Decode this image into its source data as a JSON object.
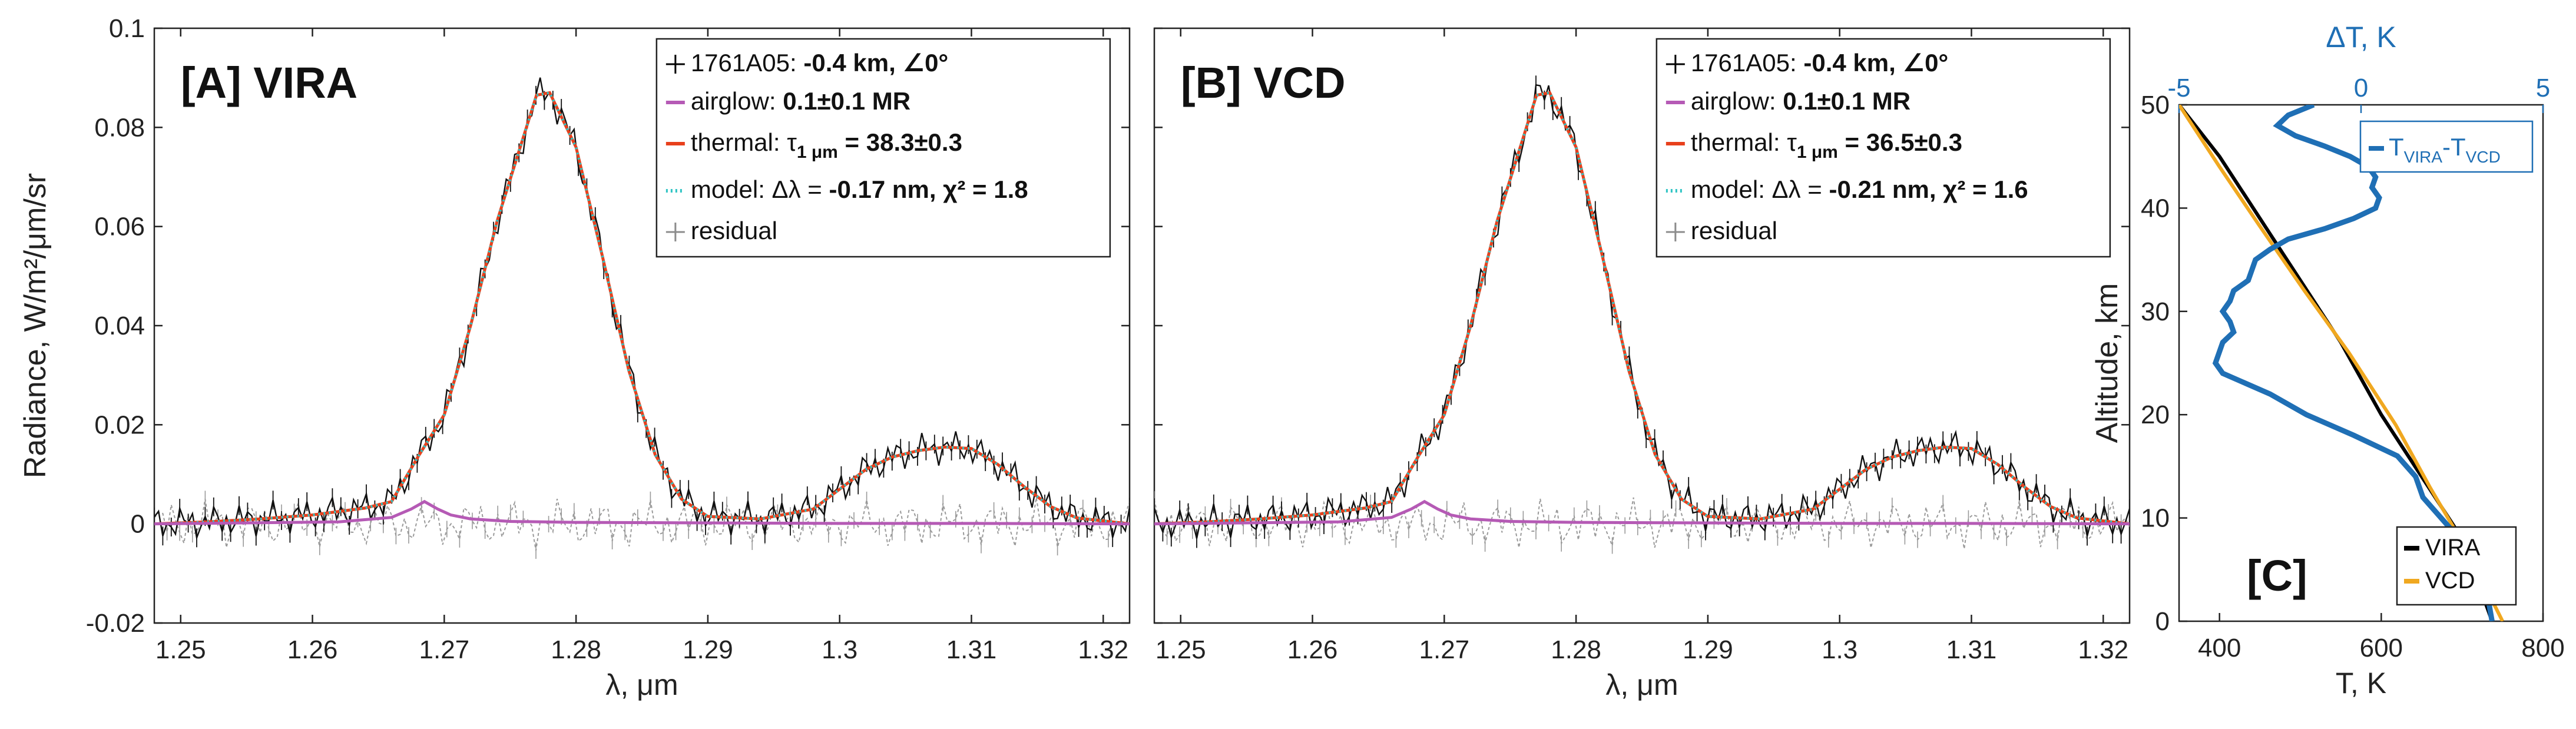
{
  "chart_data": [
    {
      "type": "line",
      "panel_label": "[A] VIRA",
      "xlabel": "λ, μm",
      "ylabel": "Radiance, W/m²/μm/sr",
      "xlim": [
        1.248,
        1.322
      ],
      "ylim": [
        -0.02,
        0.1
      ],
      "xticks": [
        1.25,
        1.26,
        1.27,
        1.28,
        1.29,
        1.3,
        1.31,
        1.32
      ],
      "xtick_labels": [
        "1.25",
        "1.26",
        "1.27",
        "1.28",
        "1.29",
        "1.3",
        "1.31",
        "1.32"
      ],
      "yticks": [
        -0.02,
        0,
        0.02,
        0.04,
        0.06,
        0.08,
        0.1
      ],
      "ytick_labels": [
        "-0.02",
        "0",
        "0.02",
        "0.04",
        "0.06",
        "0.08",
        "0.1"
      ],
      "legend": {
        "location": "top-right",
        "entries": [
          {
            "prefix": "1761A05: ",
            "value": "-0.4 km, ∠0°",
            "color": "#000000",
            "style": "errorbar"
          },
          {
            "prefix": "airglow: ",
            "value": "0.1±0.1 MR",
            "color": "#b55ab5",
            "style": "solid"
          },
          {
            "prefix": "thermal: τ",
            "sub": "1 μm",
            "value": " = 38.3±0.3",
            "color": "#e8401c",
            "style": "solid"
          },
          {
            "prefix": "model: Δλ = ",
            "value": "-0.17 nm, χ² = 1.8",
            "color": "#2ec4c4",
            "style": "dotted"
          },
          {
            "prefix": "residual",
            "value": "",
            "color": "#8c8c8c",
            "style": "errorbar"
          }
        ]
      },
      "series": [
        {
          "name": "thermal",
          "color": "#e8401c",
          "x": [
            1.248,
            1.252,
            1.256,
            1.26,
            1.264,
            1.266,
            1.268,
            1.27,
            1.272,
            1.274,
            1.276,
            1.277,
            1.278,
            1.28,
            1.282,
            1.284,
            1.286,
            1.288,
            1.29,
            1.294,
            1.298,
            1.3,
            1.302,
            1.304,
            1.306,
            1.308,
            1.31,
            1.312,
            1.314,
            1.316,
            1.318,
            1.322
          ],
          "y": [
            0,
            0.0004,
            0.001,
            0.0018,
            0.0032,
            0.0045,
            0.0135,
            0.022,
            0.04,
            0.061,
            0.078,
            0.0865,
            0.087,
            0.076,
            0.054,
            0.031,
            0.014,
            0.005,
            0.0015,
            0.001,
            0.003,
            0.007,
            0.011,
            0.0135,
            0.0148,
            0.0155,
            0.0152,
            0.012,
            0.0075,
            0.0035,
            0.0012,
            0
          ]
        },
        {
          "name": "airglow",
          "color": "#b55ab5",
          "x": [
            1.248,
            1.262,
            1.266,
            1.2675,
            1.2685,
            1.2695,
            1.2705,
            1.272,
            1.275,
            1.28,
            1.29,
            1.3,
            1.31,
            1.322
          ],
          "y": [
            0,
            0.0004,
            0.0013,
            0.003,
            0.0045,
            0.003,
            0.0018,
            0.001,
            0.0005,
            0.0003,
            0.0002,
            0.0001,
            0.0001,
            0
          ]
        }
      ]
    },
    {
      "type": "line",
      "panel_label": "[B] VCD",
      "xlabel": "λ, μm",
      "ylabel": "",
      "xlim": [
        1.248,
        1.322
      ],
      "ylim": [
        -0.02,
        0.1
      ],
      "xticks": [
        1.25,
        1.26,
        1.27,
        1.28,
        1.29,
        1.3,
        1.31,
        1.32
      ],
      "xtick_labels": [
        "1.25",
        "1.26",
        "1.27",
        "1.28",
        "1.29",
        "1.3",
        "1.31",
        "1.32"
      ],
      "legend": {
        "location": "top-right",
        "entries": [
          {
            "prefix": "1761A05: ",
            "value": "-0.4 km, ∠0°",
            "color": "#000000",
            "style": "errorbar"
          },
          {
            "prefix": "airglow: ",
            "value": "0.1±0.1 MR",
            "color": "#b55ab5",
            "style": "solid"
          },
          {
            "prefix": "thermal: τ",
            "sub": "1 μm",
            "value": " = 36.5±0.3",
            "color": "#e8401c",
            "style": "solid"
          },
          {
            "prefix": "model: Δλ = ",
            "value": "-0.21 nm, χ² = 1.6",
            "color": "#2ec4c4",
            "style": "dotted"
          },
          {
            "prefix": "residual",
            "value": "",
            "color": "#8c8c8c",
            "style": "errorbar"
          }
        ]
      },
      "series": [
        {
          "name": "thermal",
          "color": "#e8401c",
          "x": [
            1.248,
            1.252,
            1.256,
            1.26,
            1.264,
            1.266,
            1.268,
            1.27,
            1.272,
            1.274,
            1.276,
            1.277,
            1.278,
            1.28,
            1.282,
            1.284,
            1.286,
            1.288,
            1.29,
            1.294,
            1.298,
            1.3,
            1.302,
            1.304,
            1.306,
            1.308,
            1.31,
            1.312,
            1.314,
            1.316,
            1.318,
            1.322
          ],
          "y": [
            0,
            0.0004,
            0.001,
            0.0018,
            0.0032,
            0.0045,
            0.0135,
            0.022,
            0.04,
            0.061,
            0.078,
            0.0865,
            0.087,
            0.076,
            0.054,
            0.031,
            0.014,
            0.005,
            0.0015,
            0.001,
            0.003,
            0.007,
            0.011,
            0.0135,
            0.0148,
            0.0155,
            0.0152,
            0.012,
            0.0075,
            0.0035,
            0.0012,
            0
          ]
        },
        {
          "name": "airglow",
          "color": "#b55ab5",
          "x": [
            1.248,
            1.262,
            1.266,
            1.2675,
            1.2685,
            1.2695,
            1.2705,
            1.272,
            1.275,
            1.28,
            1.29,
            1.3,
            1.31,
            1.322
          ],
          "y": [
            0,
            0.0004,
            0.0013,
            0.003,
            0.0045,
            0.003,
            0.0018,
            0.001,
            0.0005,
            0.0003,
            0.0002,
            0.0001,
            0.0001,
            0
          ]
        }
      ]
    },
    {
      "type": "line",
      "panel_label": "[C]",
      "xlabel": "T, K",
      "ylabel": "Altitude, km",
      "top_xlabel": "ΔT, K",
      "xlim": [
        350,
        800
      ],
      "ylim": [
        0,
        50
      ],
      "top_xlim": [
        -5,
        5
      ],
      "xticks": [
        400,
        600,
        800
      ],
      "xtick_labels": [
        "400",
        "600",
        "800"
      ],
      "yticks": [
        0,
        10,
        20,
        30,
        40,
        50
      ],
      "ytick_labels": [
        "0",
        "10",
        "20",
        "30",
        "40",
        "50"
      ],
      "top_xticks": [
        -5,
        0,
        5
      ],
      "top_xtick_labels": [
        "-5",
        "0",
        "5"
      ],
      "top_legend": {
        "label": "T",
        "sub": "VIRA",
        "dash": "-T",
        "sub2": "VCD",
        "color": "#1f6fb5"
      },
      "legend": {
        "location": "bottom-right",
        "entries": [
          {
            "label": "VIRA",
            "color": "#000000"
          },
          {
            "label": "VCD",
            "color": "#f0a820"
          }
        ]
      },
      "series": [
        {
          "name": "VIRA",
          "axis": "bottom",
          "color": "#000000",
          "x": [
            737,
            700,
            650,
            600,
            550,
            500,
            450,
            400,
            350
          ],
          "y": [
            0,
            8,
            14,
            20,
            27,
            33,
            39,
            45,
            50
          ]
        },
        {
          "name": "VCD",
          "axis": "bottom",
          "color": "#f0a820",
          "x": [
            750,
            705,
            660,
            618,
            560,
            505,
            452,
            400,
            350
          ],
          "y": [
            0,
            7,
            13,
            19,
            26,
            32,
            38,
            44,
            50
          ]
        },
        {
          "name": "T_VIRA-T_VCD",
          "axis": "top",
          "color": "#1f6fb5",
          "x": [
            -1.3,
            -2.0,
            -2.3,
            -1.8,
            -1.0,
            -0.3,
            0.2,
            0.4,
            0.3,
            0.5,
            0.4,
            -0.2,
            -1.0,
            -2.0,
            -2.5,
            -2.9,
            -3.0,
            -3.1,
            -3.5,
            -3.6,
            -3.8,
            -3.6,
            -3.5,
            -3.8,
            -3.9,
            -4.0,
            -3.8,
            -2.5,
            -1.5,
            -0.2,
            1.0,
            1.5,
            1.7,
            2.2,
            2.7,
            3.2,
            3.5,
            3.6
          ],
          "y": [
            50,
            49,
            48,
            47,
            46,
            45,
            44,
            43,
            42,
            41,
            40,
            39,
            38,
            37,
            36,
            35,
            34,
            33,
            32,
            31,
            30,
            29,
            28,
            27,
            26,
            25,
            24,
            22,
            20,
            18,
            16,
            14,
            12,
            10,
            8,
            5,
            2,
            0
          ]
        }
      ]
    }
  ]
}
